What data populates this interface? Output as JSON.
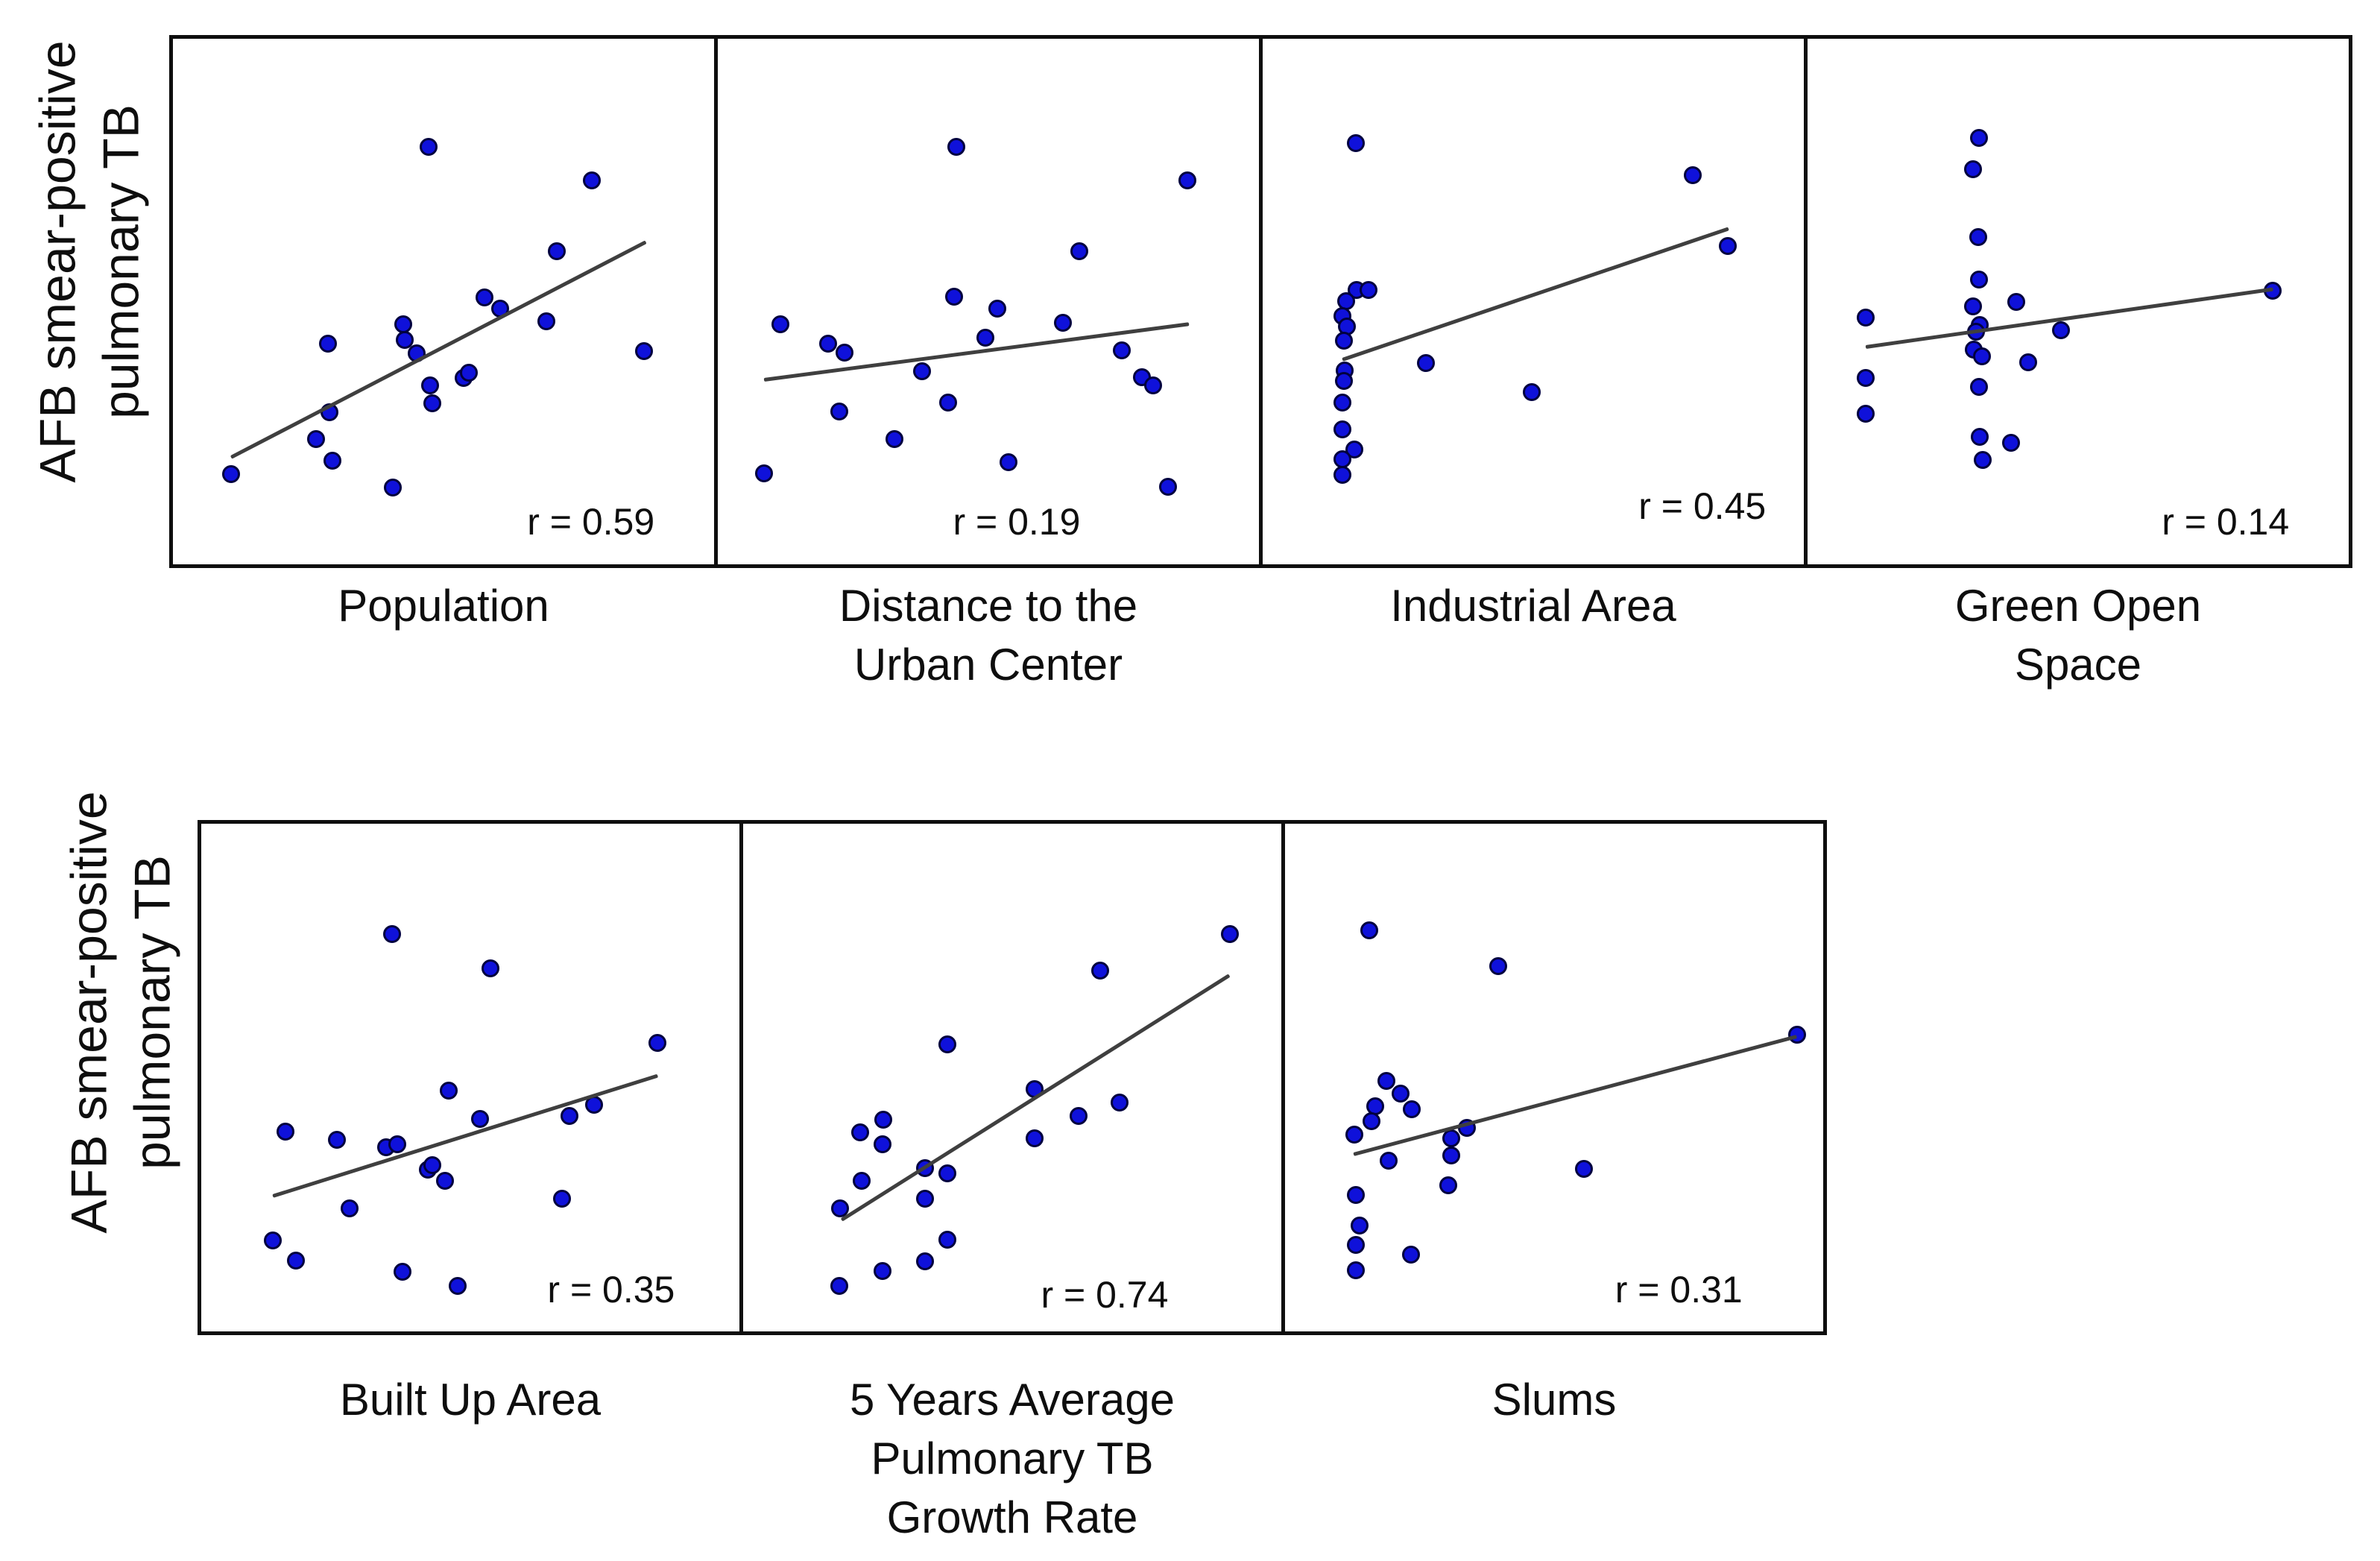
{
  "figure": {
    "y_axis_label_lines": [
      "AFB smear-positive",
      "pulmonary TB"
    ]
  },
  "colors": {
    "dot_fill": "#0f11da",
    "dot_edge": "#01013f",
    "trend_line": "#3f3f3f",
    "panel_border": "#0e0e0e",
    "text": "#0e0e0e"
  },
  "layout_hints": {
    "grid": false,
    "axis_ticks": false,
    "coordinates": "normalized 0-1, origin bottom-left of each panel"
  },
  "chart_data": [
    {
      "type": "scatter",
      "id": "population",
      "row": "top",
      "xlabel_lines": [
        "Population"
      ],
      "ylabel": "AFB smear-positive pulmonary TB",
      "r": 0.59,
      "r_label": "r = 0.59",
      "points": [
        [
          0.472,
          0.795
        ],
        [
          0.774,
          0.731
        ],
        [
          0.709,
          0.596
        ],
        [
          0.576,
          0.508
        ],
        [
          0.605,
          0.487
        ],
        [
          0.425,
          0.457
        ],
        [
          0.429,
          0.427
        ],
        [
          0.287,
          0.42
        ],
        [
          0.69,
          0.463
        ],
        [
          0.451,
          0.402
        ],
        [
          0.87,
          0.406
        ],
        [
          0.537,
          0.354
        ],
        [
          0.547,
          0.364
        ],
        [
          0.475,
          0.34
        ],
        [
          0.479,
          0.307
        ],
        [
          0.289,
          0.289
        ],
        [
          0.264,
          0.238
        ],
        [
          0.295,
          0.197
        ],
        [
          0.107,
          0.171
        ],
        [
          0.406,
          0.146
        ]
      ],
      "trend": {
        "x1": 0.107,
        "y1": 0.204,
        "x2": 0.874,
        "y2": 0.614
      }
    },
    {
      "type": "scatter",
      "id": "distance-to-urban-center",
      "row": "top",
      "xlabel_lines": [
        "Distance to the",
        "Urban Center"
      ],
      "ylabel": "AFB smear-positive pulmonary TB",
      "r": 0.19,
      "r_label": "r = 0.19",
      "points": [
        [
          0.441,
          0.795
        ],
        [
          0.868,
          0.731
        ],
        [
          0.668,
          0.596
        ],
        [
          0.436,
          0.509
        ],
        [
          0.516,
          0.487
        ],
        [
          0.116,
          0.457
        ],
        [
          0.204,
          0.42
        ],
        [
          0.234,
          0.403
        ],
        [
          0.495,
          0.431
        ],
        [
          0.638,
          0.46
        ],
        [
          0.378,
          0.368
        ],
        [
          0.747,
          0.407
        ],
        [
          0.784,
          0.356
        ],
        [
          0.805,
          0.341
        ],
        [
          0.426,
          0.308
        ],
        [
          0.225,
          0.291
        ],
        [
          0.326,
          0.239
        ],
        [
          0.537,
          0.195
        ],
        [
          0.086,
          0.173
        ],
        [
          0.832,
          0.147
        ]
      ],
      "trend": {
        "x1": 0.086,
        "y1": 0.351,
        "x2": 0.871,
        "y2": 0.457
      }
    },
    {
      "type": "scatter",
      "id": "industrial-area",
      "row": "top",
      "xlabel_lines": [
        "Industrial Area"
      ],
      "ylabel": "AFB smear-positive pulmonary TB",
      "r": 0.45,
      "r_label": "r = 0.45",
      "points": [
        [
          0.172,
          0.802
        ],
        [
          0.795,
          0.741
        ],
        [
          0.86,
          0.605
        ],
        [
          0.173,
          0.522
        ],
        [
          0.196,
          0.522
        ],
        [
          0.154,
          0.501
        ],
        [
          0.147,
          0.472
        ],
        [
          0.155,
          0.453
        ],
        [
          0.15,
          0.426
        ],
        [
          0.301,
          0.383
        ],
        [
          0.151,
          0.369
        ],
        [
          0.15,
          0.349
        ],
        [
          0.497,
          0.327
        ],
        [
          0.148,
          0.308
        ],
        [
          0.148,
          0.257
        ],
        [
          0.169,
          0.219
        ],
        [
          0.148,
          0.2
        ],
        [
          0.148,
          0.17
        ]
      ],
      "trend": {
        "x1": 0.148,
        "y1": 0.39,
        "x2": 0.861,
        "y2": 0.639
      }
    },
    {
      "type": "scatter",
      "id": "green-open-space",
      "row": "top",
      "xlabel_lines": [
        "Green Open",
        "Space"
      ],
      "ylabel": "AFB smear-positive pulmonary TB",
      "r": 0.14,
      "r_label": "r = 0.14",
      "points": [
        [
          0.317,
          0.812
        ],
        [
          0.306,
          0.752
        ],
        [
          0.315,
          0.622
        ],
        [
          0.317,
          0.542
        ],
        [
          0.306,
          0.491
        ],
        [
          0.385,
          0.499
        ],
        [
          0.107,
          0.47
        ],
        [
          0.318,
          0.455
        ],
        [
          0.311,
          0.443
        ],
        [
          0.859,
          0.521
        ],
        [
          0.468,
          0.446
        ],
        [
          0.307,
          0.409
        ],
        [
          0.322,
          0.396
        ],
        [
          0.408,
          0.385
        ],
        [
          0.107,
          0.354
        ],
        [
          0.317,
          0.337
        ],
        [
          0.107,
          0.287
        ],
        [
          0.318,
          0.242
        ],
        [
          0.376,
          0.231
        ],
        [
          0.324,
          0.198
        ]
      ],
      "trend": {
        "x1": 0.107,
        "y1": 0.413,
        "x2": 0.86,
        "y2": 0.523
      }
    },
    {
      "type": "scatter",
      "id": "built-up-area",
      "row": "bottom",
      "xlabel_lines": [
        "Built Up Area"
      ],
      "ylabel": "AFB smear-positive pulmonary TB",
      "r": 0.35,
      "r_label": "r = 0.35",
      "points": [
        [
          0.355,
          0.782
        ],
        [
          0.537,
          0.715
        ],
        [
          0.847,
          0.569
        ],
        [
          0.46,
          0.474
        ],
        [
          0.518,
          0.418
        ],
        [
          0.684,
          0.424
        ],
        [
          0.73,
          0.447
        ],
        [
          0.157,
          0.393
        ],
        [
          0.252,
          0.378
        ],
        [
          0.343,
          0.363
        ],
        [
          0.364,
          0.368
        ],
        [
          0.421,
          0.318
        ],
        [
          0.429,
          0.327
        ],
        [
          0.453,
          0.297
        ],
        [
          0.67,
          0.262
        ],
        [
          0.275,
          0.242
        ],
        [
          0.133,
          0.179
        ],
        [
          0.176,
          0.139
        ],
        [
          0.374,
          0.117
        ],
        [
          0.476,
          0.089
        ]
      ],
      "trend": {
        "x1": 0.133,
        "y1": 0.266,
        "x2": 0.848,
        "y2": 0.503
      }
    },
    {
      "type": "scatter",
      "id": "tb-growth-rate",
      "row": "bottom",
      "xlabel_lines": [
        "5 Years Average",
        "Pulmonary TB",
        "Growth Rate"
      ],
      "ylabel": "AFB smear-positive pulmonary TB",
      "r": 0.74,
      "r_label": "r = 0.74",
      "points": [
        [
          0.904,
          0.782
        ],
        [
          0.663,
          0.71
        ],
        [
          0.379,
          0.566
        ],
        [
          0.542,
          0.477
        ],
        [
          0.7,
          0.451
        ],
        [
          0.623,
          0.425
        ],
        [
          0.26,
          0.417
        ],
        [
          0.218,
          0.392
        ],
        [
          0.542,
          0.381
        ],
        [
          0.259,
          0.368
        ],
        [
          0.338,
          0.321
        ],
        [
          0.379,
          0.312
        ],
        [
          0.22,
          0.297
        ],
        [
          0.338,
          0.262
        ],
        [
          0.18,
          0.243
        ],
        [
          0.379,
          0.181
        ],
        [
          0.338,
          0.138
        ],
        [
          0.259,
          0.119
        ],
        [
          0.178,
          0.089
        ]
      ],
      "trend": {
        "x1": 0.183,
        "y1": 0.219,
        "x2": 0.904,
        "y2": 0.701
      }
    },
    {
      "type": "scatter",
      "id": "slums",
      "row": "bottom",
      "xlabel_lines": [
        "Slums"
      ],
      "ylabel": "AFB smear-positive pulmonary TB",
      "r": 0.31,
      "r_label": "r = 0.31",
      "points": [
        [
          0.157,
          0.79
        ],
        [
          0.396,
          0.72
        ],
        [
          0.951,
          0.584
        ],
        [
          0.188,
          0.494
        ],
        [
          0.214,
          0.469
        ],
        [
          0.236,
          0.437
        ],
        [
          0.167,
          0.444
        ],
        [
          0.16,
          0.414
        ],
        [
          0.129,
          0.388
        ],
        [
          0.338,
          0.401
        ],
        [
          0.309,
          0.381
        ],
        [
          0.309,
          0.346
        ],
        [
          0.192,
          0.336
        ],
        [
          0.555,
          0.32
        ],
        [
          0.304,
          0.288
        ],
        [
          0.131,
          0.268
        ],
        [
          0.138,
          0.208
        ],
        [
          0.131,
          0.17
        ],
        [
          0.234,
          0.151
        ],
        [
          0.131,
          0.12
        ]
      ],
      "trend": {
        "x1": 0.128,
        "y1": 0.349,
        "x2": 0.951,
        "y2": 0.581
      }
    }
  ]
}
